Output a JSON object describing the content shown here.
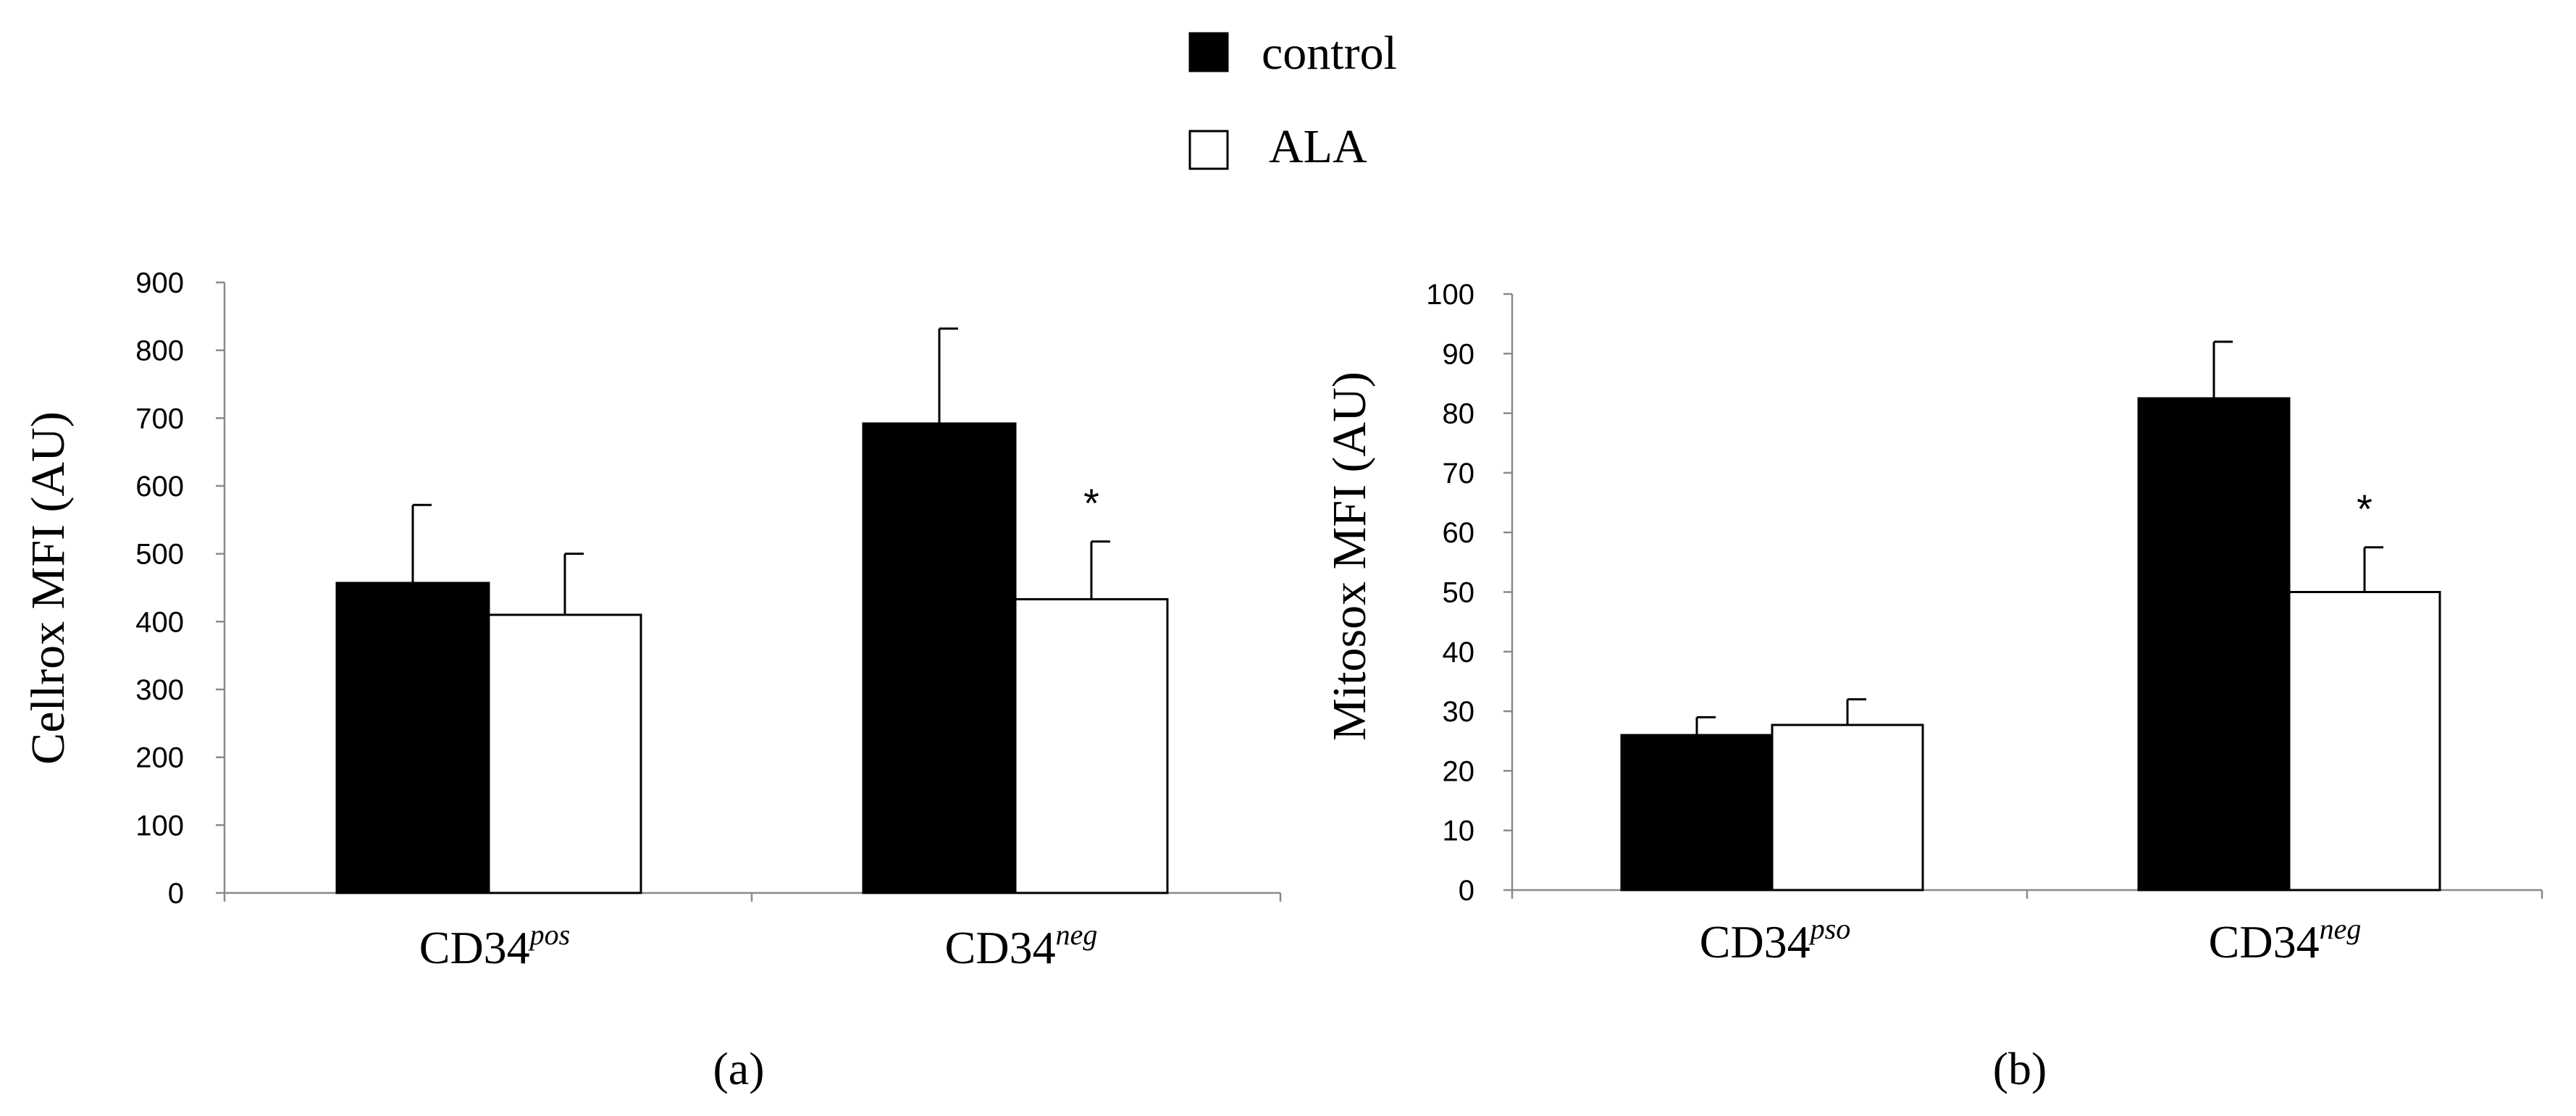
{
  "legend": {
    "entries": [
      {
        "label": "control",
        "color": "#000000"
      },
      {
        "label": "ALA",
        "color": "#ffffff"
      }
    ]
  },
  "chart_data": [
    {
      "type": "bar",
      "panel_label": "(a)",
      "title": "",
      "ylabel": "Cellrox MFI (AU)",
      "xlabel": "",
      "ylim": [
        0,
        900
      ],
      "yticks": [
        0,
        100,
        200,
        300,
        400,
        500,
        600,
        700,
        800,
        900
      ],
      "categories": [
        {
          "base": "CD34",
          "sup": "pos"
        },
        {
          "base": "CD34",
          "sup": "neg"
        }
      ],
      "series": [
        {
          "name": "control",
          "color": "#000000",
          "values": [
            457,
            692
          ],
          "errors": [
            115,
            140
          ]
        },
        {
          "name": "ALA",
          "color": "#ffffff",
          "values": [
            410,
            433
          ],
          "errors": [
            90,
            85
          ]
        }
      ],
      "annotations": [
        {
          "series": "ALA",
          "category_index": 1,
          "text": "*"
        }
      ],
      "grid": false
    },
    {
      "type": "bar",
      "panel_label": "(b)",
      "title": "",
      "ylabel": "Mitosox MFI (AU)",
      "xlabel": "",
      "ylim": [
        0,
        100
      ],
      "yticks": [
        0,
        10,
        20,
        30,
        40,
        50,
        60,
        70,
        80,
        90,
        100
      ],
      "categories": [
        {
          "base": "CD34",
          "sup": "pso"
        },
        {
          "base": "CD34",
          "sup": "neg"
        }
      ],
      "series": [
        {
          "name": "control",
          "color": "#000000",
          "values": [
            26,
            82.5
          ],
          "errors": [
            3,
            9.5
          ]
        },
        {
          "name": "ALA",
          "color": "#ffffff",
          "values": [
            27.7,
            50
          ],
          "errors": [
            4.3,
            7.5
          ]
        }
      ],
      "annotations": [
        {
          "series": "ALA",
          "category_index": 1,
          "text": "*"
        }
      ],
      "grid": false
    }
  ]
}
